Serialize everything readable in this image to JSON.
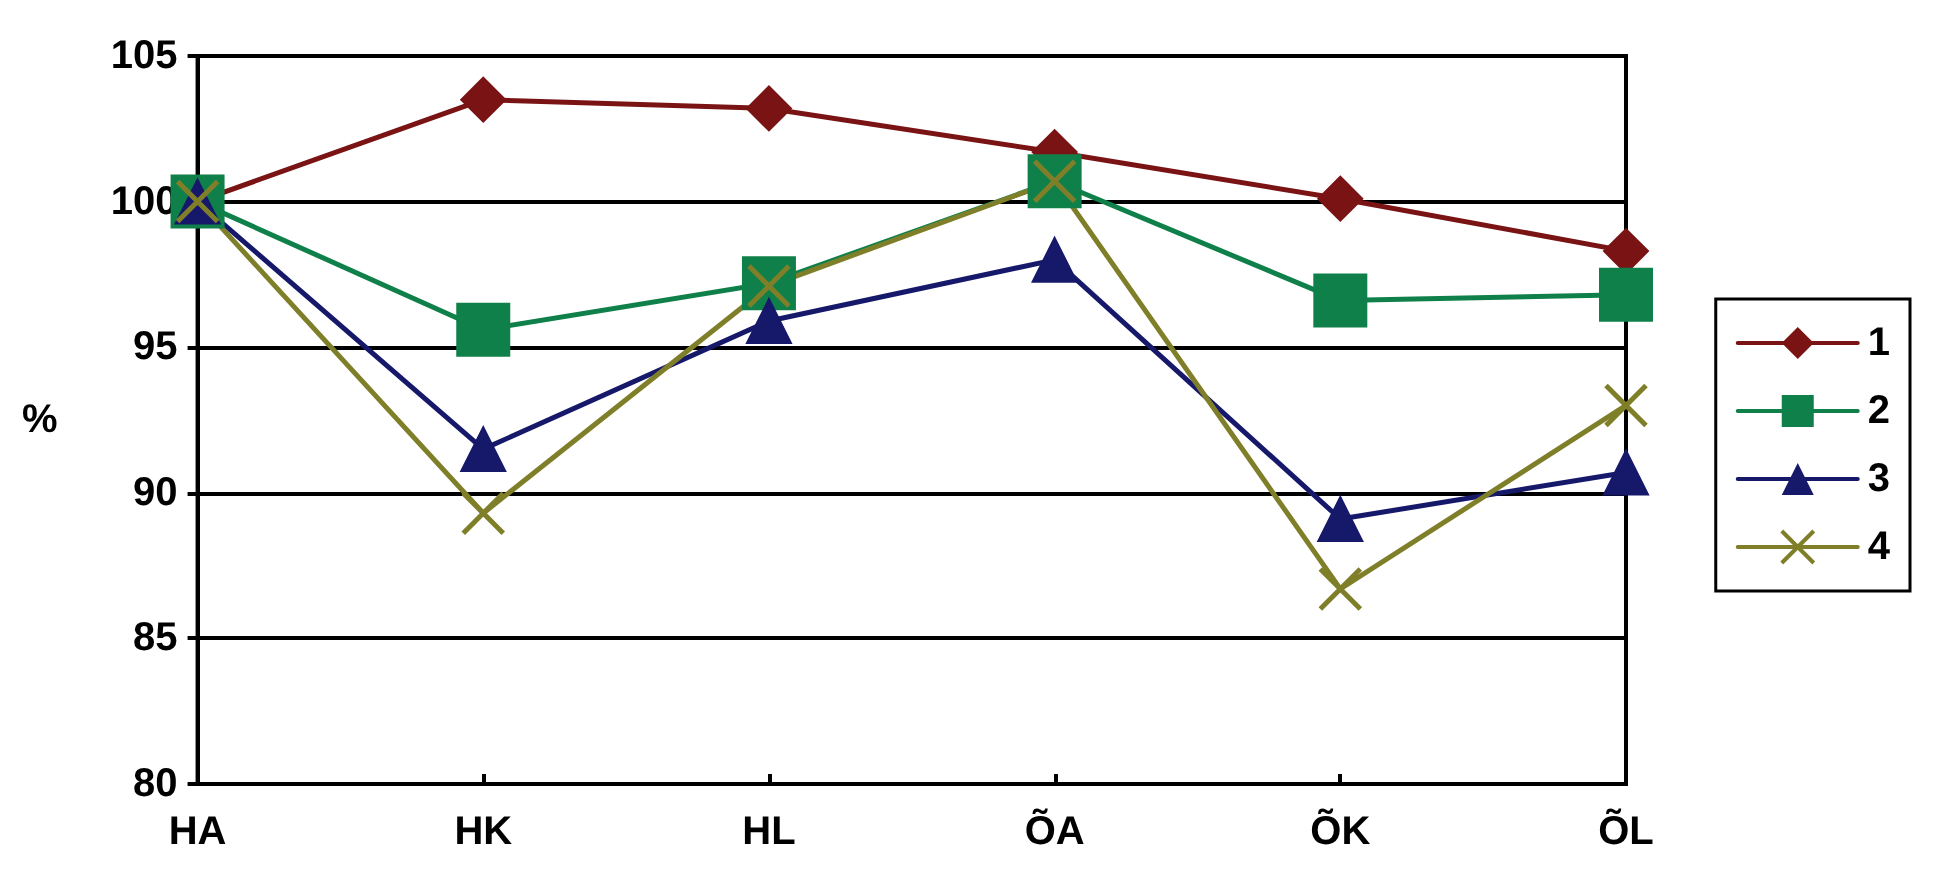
{
  "chart_data": {
    "type": "line",
    "ylabel": "%",
    "categories": [
      "HA",
      "HK",
      "HL",
      "ÕA",
      "ÕK",
      "ÕL"
    ],
    "series": [
      {
        "name": "1",
        "color": "#7a1414",
        "marker": "diamond",
        "values": [
          100,
          103.5,
          103.2,
          101.7,
          100.1,
          98.3
        ]
      },
      {
        "name": "2",
        "color": "#10804a",
        "marker": "square",
        "values": [
          100,
          95.6,
          97.2,
          100.7,
          96.6,
          96.8
        ]
      },
      {
        "name": "3",
        "color": "#16186a",
        "marker": "triangle",
        "values": [
          100,
          91.5,
          95.9,
          98.0,
          89.1,
          90.7
        ]
      },
      {
        "name": "4",
        "color": "#7f7f2a",
        "marker": "cross",
        "values": [
          100,
          89.3,
          97.1,
          100.7,
          86.7,
          93.0
        ]
      }
    ],
    "ylim": [
      80,
      105
    ],
    "yticks": [
      80,
      85,
      90,
      95,
      100,
      105
    ],
    "grid": "y",
    "legend": "right",
    "line_style": "solid"
  }
}
